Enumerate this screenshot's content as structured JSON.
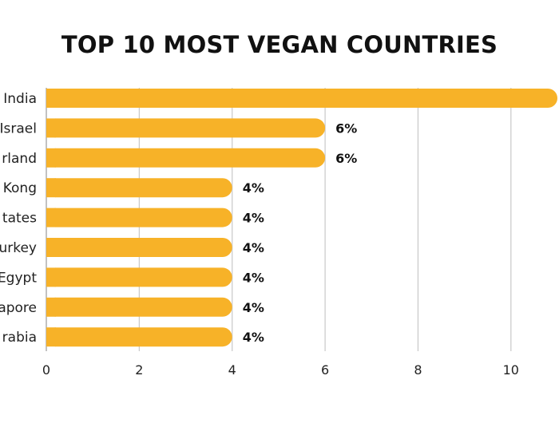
{
  "chart_data": {
    "type": "bar",
    "orientation": "horizontal",
    "title": "TOP 10 MOST VEGAN COUNTRIES",
    "categories": [
      "India",
      "Israel",
      "rland",
      "Kong",
      "tates",
      "urkey",
      "Egypt",
      "apore",
      "rabia"
    ],
    "values": [
      11,
      6,
      6,
      4,
      4,
      4,
      4,
      4,
      4
    ],
    "data_labels": [
      "",
      "6%",
      "6%",
      "4%",
      "4%",
      "4%",
      "4%",
      "4%",
      "4%"
    ],
    "xlim": [
      0,
      11
    ],
    "xticks": [
      0,
      2,
      4,
      6,
      8,
      10
    ],
    "xtick_labels": [
      "0",
      "2",
      "4",
      "6",
      "8",
      "10"
    ],
    "xlabel": "",
    "ylabel": "",
    "grid": "vertical",
    "legend": "none",
    "bar_color": "#F7B228"
  }
}
